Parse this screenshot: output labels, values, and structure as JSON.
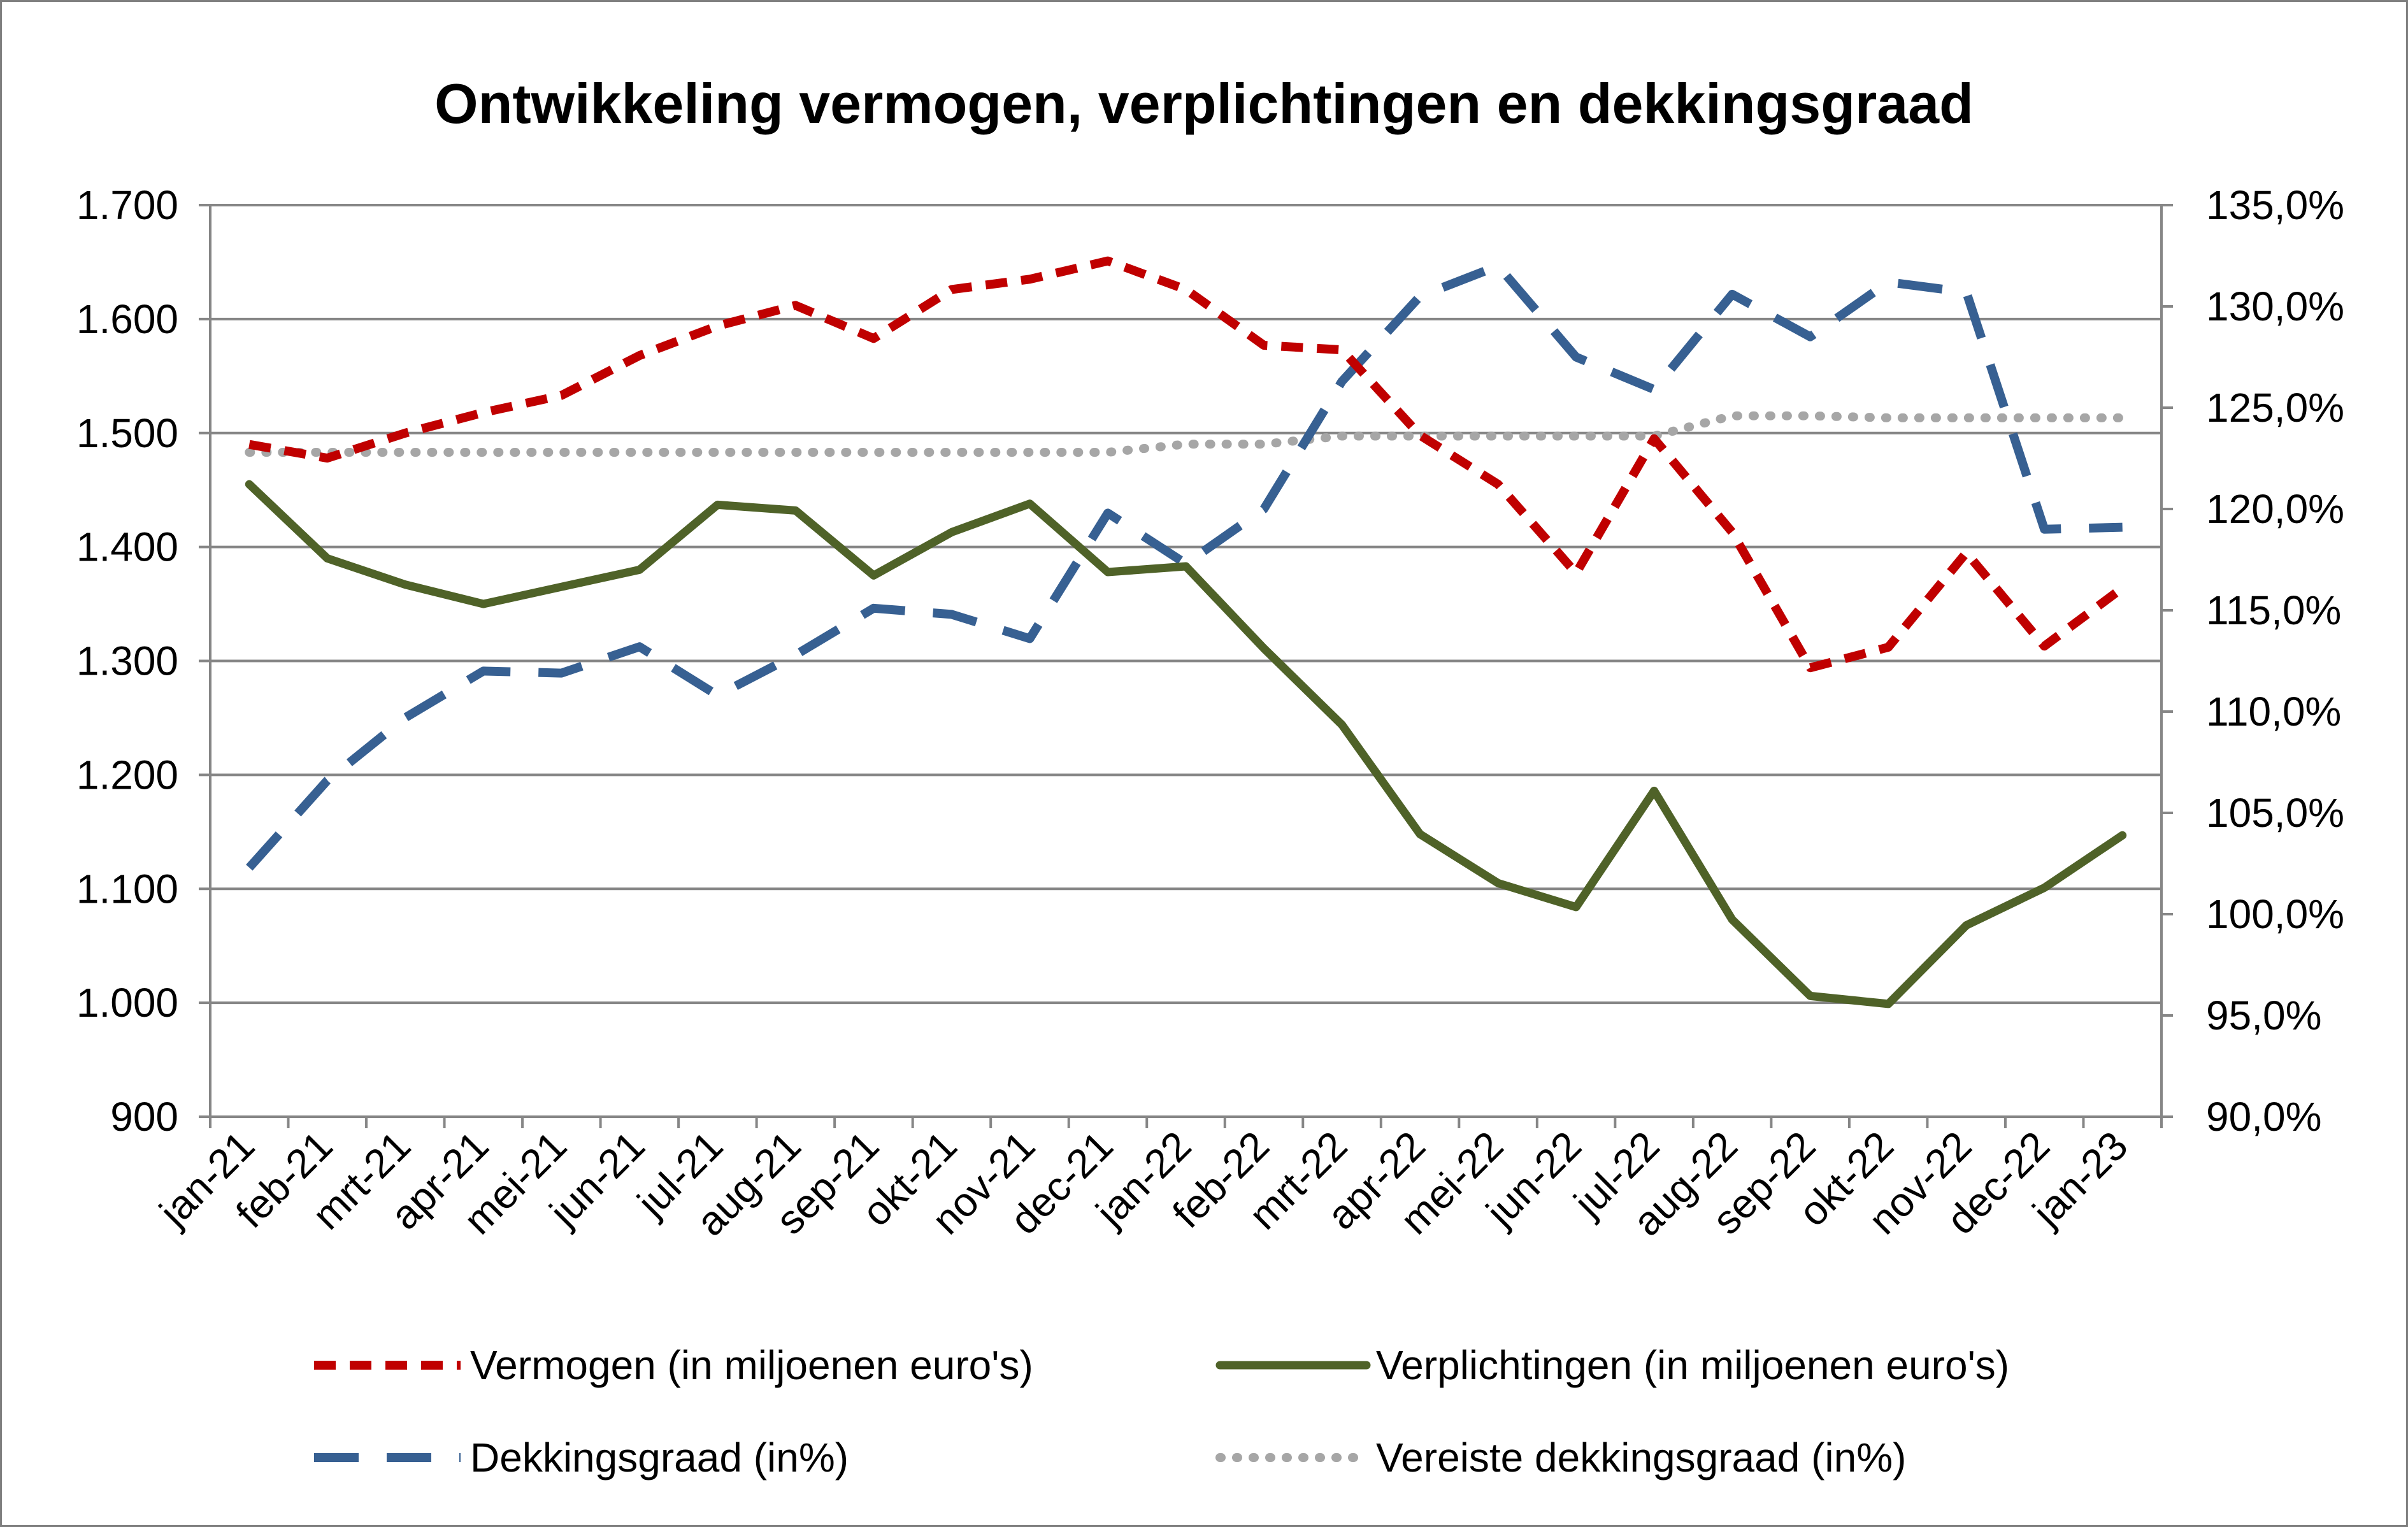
{
  "chart_data": {
    "type": "line",
    "title": "Ontwikkeling vermogen, verplichtingen en dekkingsgraad",
    "xlabel": "",
    "ylabel": "",
    "y2label": "",
    "categories": [
      "jan-21",
      "feb-21",
      "mrt-21",
      "apr-21",
      "mei-21",
      "jun-21",
      "jul-21",
      "aug-21",
      "sep-21",
      "okt-21",
      "nov-21",
      "dec-21",
      "jan-22",
      "feb-22",
      "mrt-22",
      "apr-22",
      "mei-22",
      "jun-22",
      "jul-22",
      "aug-22",
      "sep-22",
      "okt-22",
      "nov-22",
      "dec-22",
      "jan-23"
    ],
    "ylim": [
      900,
      1700
    ],
    "yticks": [
      900,
      1000,
      1100,
      1200,
      1300,
      1400,
      1500,
      1600,
      1700
    ],
    "ytick_labels": [
      "900",
      "1.000",
      "1.100",
      "1.200",
      "1.300",
      "1.400",
      "1.500",
      "1.600",
      "1.700"
    ],
    "y2lim": [
      90,
      135
    ],
    "y2ticks": [
      90,
      95,
      100,
      105,
      110,
      115,
      120,
      125,
      130,
      135
    ],
    "y2tick_labels": [
      "90,0%",
      "95,0%",
      "100,0%",
      "105,0%",
      "110,0%",
      "115,0%",
      "120,0%",
      "125,0%",
      "130,0%",
      "135,0%"
    ],
    "grid": true,
    "legend_position": "bottom",
    "series": [
      {
        "name": "Vermogen (in miljoenen euro's)",
        "axis": "left",
        "color": "#c00000",
        "style": "dashed",
        "values": [
          1490,
          1478,
          1500,
          1518,
          1533,
          1568,
          1594,
          1612,
          1583,
          1626,
          1635,
          1651,
          1626,
          1577,
          1573,
          1498,
          1455,
          1377,
          1495,
          1413,
          1294,
          1312,
          1395,
          1313,
          1364
        ]
      },
      {
        "name": "Verplichtingen (in miljoenen euro's)",
        "axis": "left",
        "color": "#4f6228",
        "style": "solid",
        "values": [
          1455,
          1390,
          1367,
          1350,
          1365,
          1380,
          1437,
          1432,
          1375,
          1413,
          1438,
          1378,
          1383,
          1311,
          1244,
          1148,
          1105,
          1084,
          1186,
          1073,
          1006,
          999,
          1068,
          1101,
          1147
        ]
      },
      {
        "name": "Dekkingsgraad (in%)",
        "axis": "right",
        "color": "#376092",
        "style": "longdash",
        "values": [
          102.3,
          106.6,
          109.7,
          112.0,
          111.9,
          113.2,
          110.8,
          112.8,
          115.1,
          114.8,
          113.6,
          119.8,
          117.3,
          120.0,
          126.3,
          130.5,
          132.0,
          127.5,
          125.9,
          130.6,
          128.5,
          131.2,
          130.7,
          119.0,
          119.1
        ]
      },
      {
        "name": "Vereiste dekkingsgraad (in%)",
        "axis": "right",
        "color": "#a6a6a6",
        "style": "dotted",
        "values": [
          122.8,
          122.8,
          122.8,
          122.8,
          122.8,
          122.8,
          122.8,
          122.8,
          122.8,
          122.8,
          122.8,
          122.8,
          123.2,
          123.2,
          123.6,
          123.6,
          123.6,
          123.6,
          123.6,
          124.6,
          124.6,
          124.5,
          124.5,
          124.5,
          124.5
        ]
      }
    ]
  }
}
